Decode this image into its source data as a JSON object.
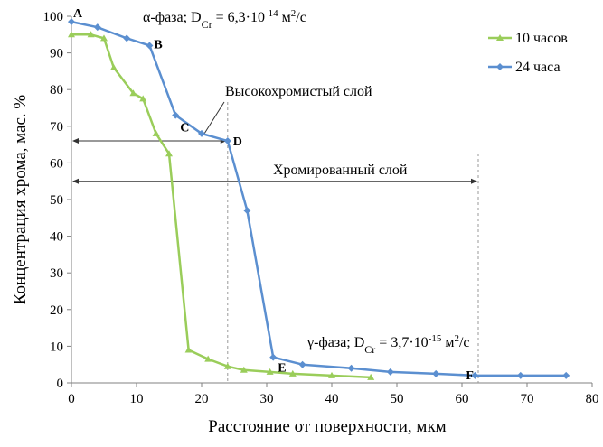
{
  "chart_data": {
    "type": "line",
    "xlabel": "Расстояние от поверхности, мкм",
    "ylabel": "Концентрация хрома, мас. %",
    "xlim": [
      0,
      80
    ],
    "ylim": [
      0,
      100
    ],
    "xticks": [
      0,
      10,
      20,
      30,
      40,
      50,
      60,
      70,
      80
    ],
    "yticks": [
      0,
      10,
      20,
      30,
      40,
      50,
      60,
      70,
      80,
      90,
      100
    ],
    "grid": false,
    "legend_position": "top-right",
    "series": [
      {
        "name": "10 часов",
        "color": "#9acd5a",
        "marker": "triangle",
        "x": [
          0,
          3,
          5,
          6.5,
          9.5,
          11,
          13,
          15,
          18,
          21,
          24,
          26.5,
          30.5,
          34,
          40,
          46
        ],
        "y": [
          95,
          95,
          94,
          86,
          79,
          77.5,
          68,
          62.5,
          9,
          6.5,
          4.5,
          3.5,
          3,
          2.5,
          2,
          1.5
        ]
      },
      {
        "name": "24 часа",
        "color": "#5b8fd0",
        "marker": "diamond",
        "x": [
          0,
          4,
          8.5,
          12,
          16,
          20,
          24,
          27,
          31,
          35.5,
          43,
          49,
          56,
          62,
          69,
          76
        ],
        "y": [
          98.5,
          97,
          94,
          92,
          73,
          68,
          66,
          47,
          7,
          5,
          4,
          3,
          2.5,
          2,
          2,
          2
        ]
      }
    ],
    "point_labels": [
      {
        "text": "A",
        "x": 0,
        "y": 98.5
      },
      {
        "text": "B",
        "x": 12,
        "y": 92
      },
      {
        "text": "C",
        "x": 16,
        "y": 73
      },
      {
        "text": "D",
        "x": 24,
        "y": 66
      },
      {
        "text": "E",
        "x": 31,
        "y": 7
      },
      {
        "text": "F",
        "x": 62,
        "y": 2
      }
    ],
    "annotations": {
      "alpha_phase": {
        "prefix": "α-фаза; D",
        "sub": "Cr",
        "mid": " = 6,3·10",
        "exp": "-14",
        "unit": " м",
        "unit_exp": "2",
        "unit_tail": "/с"
      },
      "gamma_phase": {
        "prefix": "γ-фаза; D",
        "sub": "Cr",
        "mid": " = 3,7·10",
        "exp": "-15",
        "unit": " м",
        "unit_exp": "2",
        "unit_tail": "/с"
      },
      "high_chrome_layer": "Высокохромистый слой",
      "chrome_layer": "Хромированный слой"
    },
    "reference_lines": {
      "high_chrome_layer": {
        "x_end": 24,
        "y": 66
      },
      "chrome_layer": {
        "x_end": 62.5,
        "y": 55
      }
    }
  }
}
